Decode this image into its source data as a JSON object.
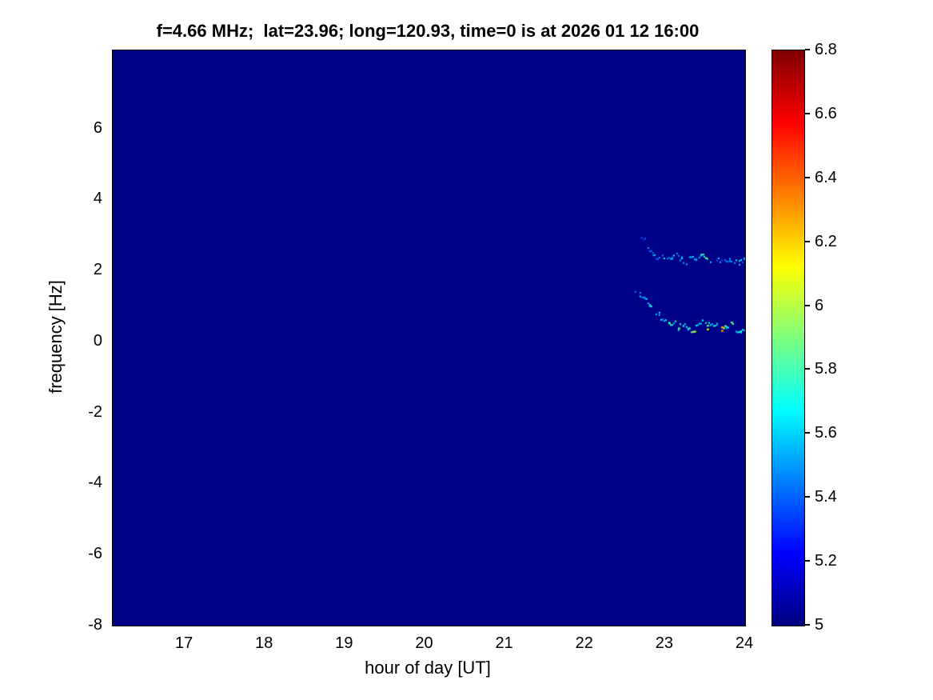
{
  "chart_data": {
    "type": "heatmap",
    "title": "f=4.66 MHz;  lat=23.96; long=120.93, time=0 is at 2026 01 12 16:00",
    "xlabel": "hour of day [UT]",
    "ylabel": "frequency [Hz]",
    "xlim": [
      16.1,
      24
    ],
    "ylim": [
      -8,
      8.2
    ],
    "x_ticks": [
      17,
      18,
      19,
      20,
      21,
      22,
      23,
      24
    ],
    "y_ticks": [
      -8,
      -6,
      -4,
      -2,
      0,
      2,
      4,
      6
    ],
    "grid": false,
    "colormap": "jet",
    "background_value": 5,
    "background_color": "#000087",
    "colorbar": {
      "min": 5,
      "max": 6.8,
      "ticks": [
        5,
        5.2,
        5.4,
        5.6,
        5.8,
        6,
        6.2,
        6.4,
        6.6,
        6.8
      ],
      "position": "right"
    },
    "traces": [
      {
        "name": "upper-doppler-trace",
        "description": "faint speckled trace near 2.2-3 Hz appearing from hour ~22.7 to 24",
        "polylines": [
          [
            [
              22.7,
              3.02,
              5.4
            ],
            [
              22.74,
              2.88,
              5.4
            ]
          ],
          [
            [
              22.78,
              2.62,
              5.4
            ],
            [
              22.84,
              2.5,
              5.5
            ],
            [
              22.9,
              2.36,
              5.5
            ],
            [
              22.96,
              2.44,
              5.6
            ],
            [
              23.02,
              2.3,
              5.5
            ],
            [
              23.08,
              2.4,
              5.6
            ],
            [
              23.14,
              2.46,
              5.5
            ],
            [
              23.2,
              2.34,
              5.6
            ],
            [
              23.26,
              2.26,
              5.5
            ],
            [
              23.32,
              2.38,
              5.6
            ],
            [
              23.38,
              2.3,
              5.5
            ],
            [
              23.44,
              2.44,
              5.7
            ],
            [
              23.5,
              2.36,
              5.9
            ],
            [
              23.56,
              2.28,
              5.6
            ],
            [
              23.62,
              2.4,
              5.5
            ],
            [
              23.68,
              2.32,
              5.5
            ],
            [
              23.74,
              2.26,
              5.4
            ],
            [
              23.8,
              2.34,
              5.5
            ],
            [
              23.86,
              2.28,
              5.5
            ],
            [
              23.92,
              2.24,
              5.6
            ],
            [
              23.98,
              2.3,
              5.5
            ],
            [
              24.0,
              2.32,
              5.5
            ]
          ]
        ]
      },
      {
        "name": "lower-doppler-trace",
        "description": "speckled trace descending from ~1.5 Hz at hour 22.6 to ~0.4 Hz, wavy until hour 24, with brighter green/yellow specks",
        "polylines": [
          [
            [
              22.62,
              1.48,
              5.6
            ],
            [
              22.68,
              1.34,
              5.5
            ],
            [
              22.74,
              1.2,
              5.6
            ],
            [
              22.8,
              1.04,
              5.6
            ],
            [
              22.86,
              0.9,
              5.7
            ],
            [
              22.92,
              0.76,
              5.6
            ],
            [
              22.98,
              0.62,
              5.6
            ],
            [
              23.04,
              0.48,
              5.8
            ],
            [
              23.1,
              0.58,
              5.6
            ],
            [
              23.16,
              0.42,
              5.9
            ],
            [
              23.22,
              0.5,
              5.6
            ],
            [
              23.28,
              0.4,
              5.7
            ],
            [
              23.34,
              0.34,
              6.1
            ],
            [
              23.4,
              0.46,
              5.7
            ],
            [
              23.46,
              0.56,
              5.6
            ],
            [
              23.52,
              0.44,
              6.0
            ],
            [
              23.58,
              0.56,
              5.7
            ],
            [
              23.64,
              0.46,
              5.6
            ],
            [
              23.7,
              0.36,
              6.2
            ],
            [
              23.76,
              0.44,
              5.6
            ],
            [
              23.82,
              0.52,
              5.8
            ],
            [
              23.88,
              0.38,
              5.6
            ],
            [
              23.94,
              0.32,
              5.7
            ],
            [
              24.0,
              0.4,
              5.6
            ]
          ]
        ]
      }
    ]
  }
}
